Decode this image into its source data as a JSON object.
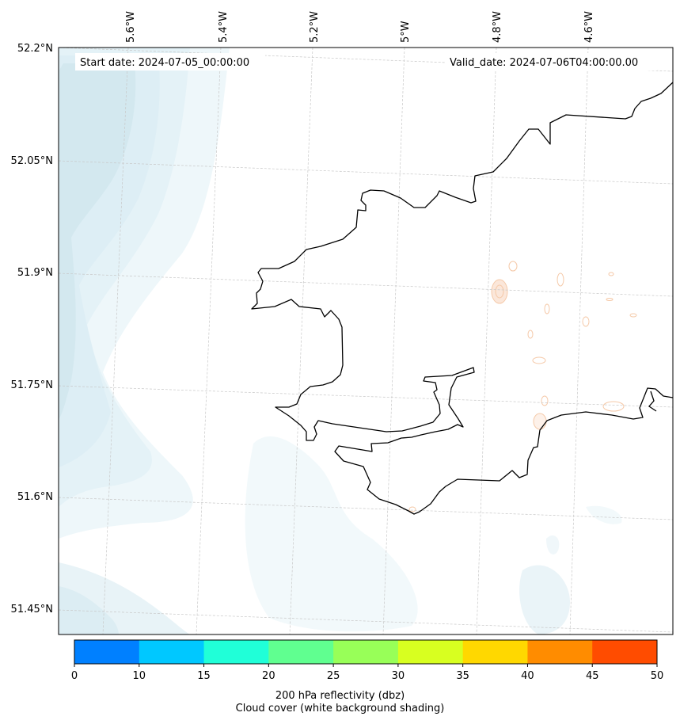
{
  "map": {
    "start_date": "Start date: 2024-07-05_00:00:00",
    "valid_date": "Valid_date: 2024-07-06T04:00:00.00",
    "lon_labels": [
      "5.6°W",
      "5.4°W",
      "5.2°W",
      "5°W",
      "4.8°W",
      "4.6°W"
    ],
    "lat_labels": [
      "52.2°N",
      "52.05°N",
      "51.9°N",
      "51.75°N",
      "51.6°N",
      "51.45°N"
    ],
    "cloud_color": "#d3e8ef",
    "echo_color": "#f5c9a8",
    "coastline_color": "#000000"
  },
  "colorbar": {
    "ticks": [
      "0",
      "10",
      "15",
      "20",
      "25",
      "30",
      "35",
      "40",
      "45",
      "50"
    ],
    "colors": [
      "#0080ff",
      "#00c8ff",
      "#20ffd8",
      "#60ff90",
      "#98ff58",
      "#d8ff20",
      "#ffd800",
      "#ff8c00",
      "#ff4c00"
    ],
    "label_line1": "200 hPa reflectivity (dbz)",
    "label_line2": "Cloud cover (white background shading)"
  }
}
